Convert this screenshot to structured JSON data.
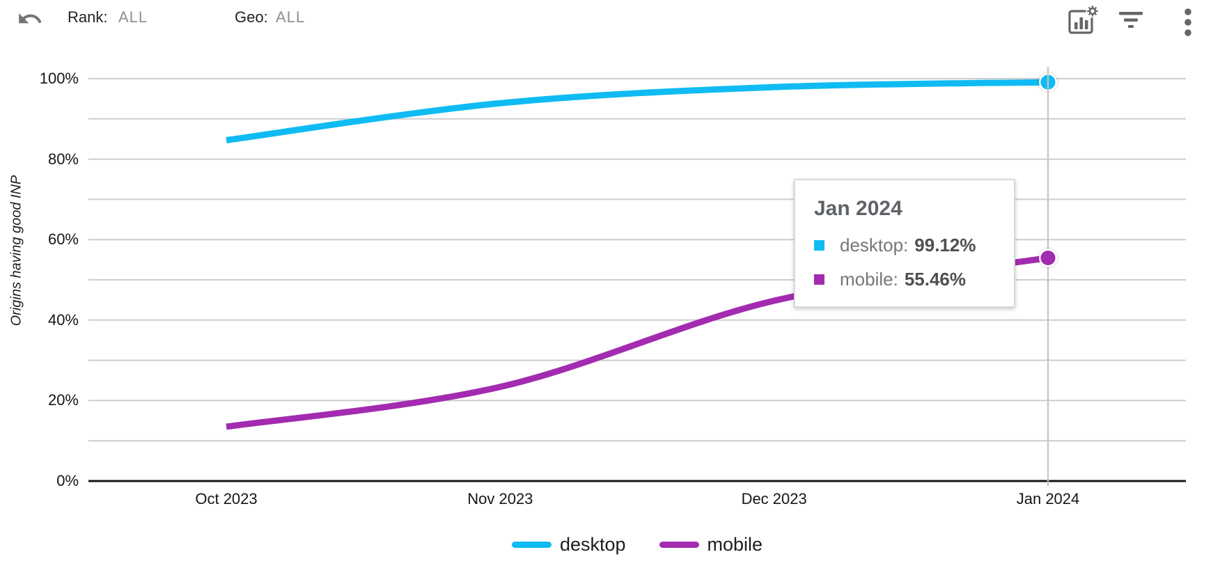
{
  "toolbar": {
    "undo_icon": "undo-arrow",
    "filters": [
      {
        "label": "Rank:",
        "value": "ALL"
      },
      {
        "label": "Geo:",
        "value": "ALL"
      }
    ],
    "action_icons": [
      "chart-settings",
      "filter",
      "more-vertical"
    ]
  },
  "chart_data": {
    "type": "line",
    "title": "",
    "xlabel": "",
    "ylabel": "Origins having good INP",
    "x": [
      "Oct 2023",
      "Nov 2023",
      "Dec 2023",
      "Jan 2024"
    ],
    "series": [
      {
        "name": "desktop",
        "color": "#0FBBF2",
        "values": [
          84.7,
          93.9,
          97.9,
          99.12
        ]
      },
      {
        "name": "mobile",
        "color": "#A32BB0",
        "values": [
          13.5,
          23.4,
          44.8,
          55.46
        ]
      }
    ],
    "ylim": [
      0,
      100
    ],
    "ytick_step": 10,
    "yticks": [
      {
        "label": "100%",
        "value": 100
      },
      {
        "label": "80%",
        "value": 80
      },
      {
        "label": "60%",
        "value": 60
      },
      {
        "label": "40%",
        "value": 40
      },
      {
        "label": "20%",
        "value": 20
      },
      {
        "label": "0%",
        "value": 0
      }
    ],
    "grid": true,
    "legend_position": "bottom",
    "highlighted_x": "Jan 2024"
  },
  "tooltip": {
    "title": "Jan 2024",
    "rows": [
      {
        "label": "desktop:",
        "value": "99.12%"
      },
      {
        "label": "mobile:",
        "value": "55.46%"
      }
    ]
  },
  "colors": {
    "desktop": "#0FBBF2",
    "mobile": "#A32BB0",
    "gridline": "#cdcdcd",
    "axis": "#151515",
    "crosshair": "#c4c4c4",
    "icon_gray": "#666666"
  }
}
